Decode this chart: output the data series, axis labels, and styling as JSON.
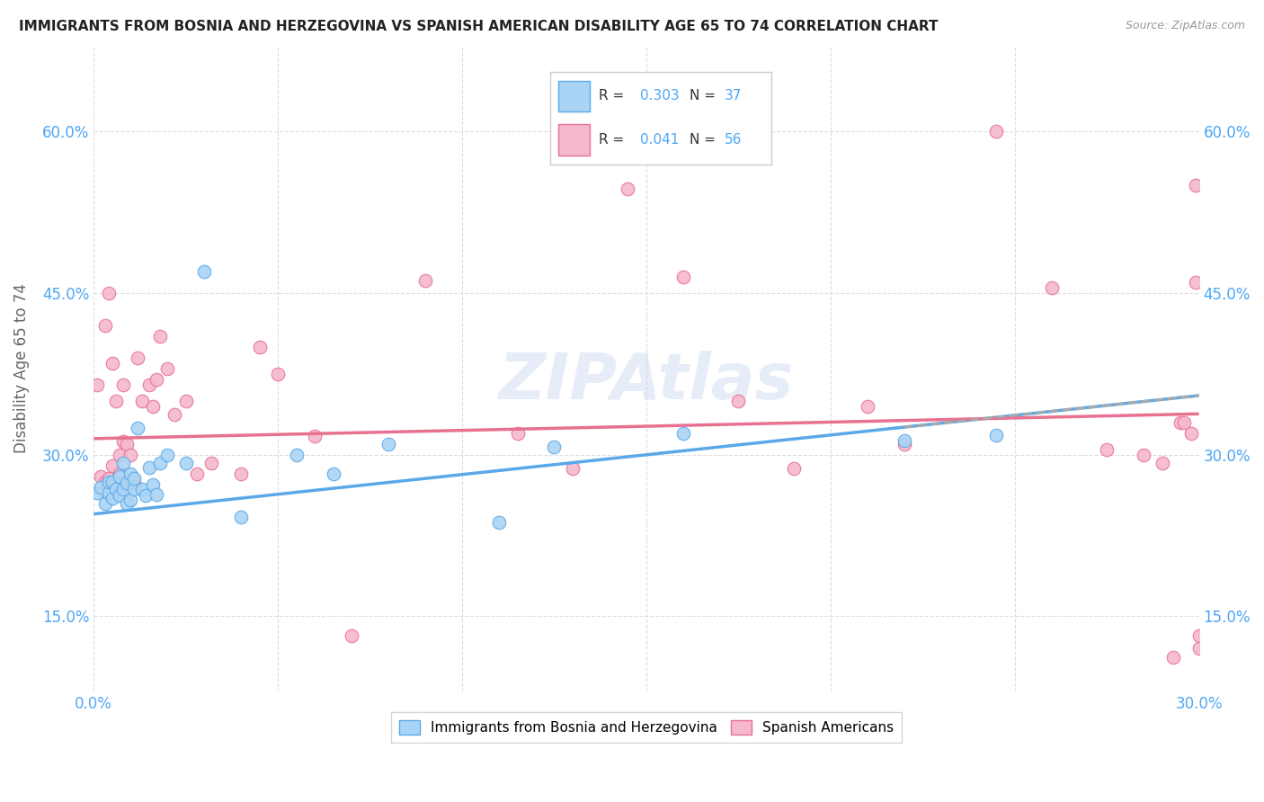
{
  "title": "IMMIGRANTS FROM BOSNIA AND HERZEGOVINA VS SPANISH AMERICAN DISABILITY AGE 65 TO 74 CORRELATION CHART",
  "source": "Source: ZipAtlas.com",
  "ylabel": "Disability Age 65 to 74",
  "xlim": [
    0.0,
    0.3
  ],
  "ylim": [
    0.08,
    0.68
  ],
  "xticks": [
    0.0,
    0.05,
    0.1,
    0.15,
    0.2,
    0.25,
    0.3
  ],
  "yticks": [
    0.15,
    0.3,
    0.45,
    0.6
  ],
  "xticklabels": [
    "0.0%",
    "",
    "",
    "",
    "",
    "",
    "30.0%"
  ],
  "yticklabels": [
    "15.0%",
    "30.0%",
    "45.0%",
    "60.0%"
  ],
  "legend_entries": [
    "Immigrants from Bosnia and Herzegovina",
    "Spanish Americans"
  ],
  "R_blue": 0.303,
  "N_blue": 37,
  "R_pink": 0.041,
  "N_pink": 56,
  "color_blue": "#aad4f5",
  "color_pink": "#f5b8cc",
  "color_blue_line": "#5aa8e8",
  "color_pink_line": "#e87090",
  "color_blue_text": "#4da6f5",
  "watermark": "ZIPAtlas",
  "blue_scatter_x": [
    0.001,
    0.002,
    0.003,
    0.004,
    0.004,
    0.005,
    0.005,
    0.006,
    0.007,
    0.007,
    0.008,
    0.008,
    0.009,
    0.009,
    0.01,
    0.01,
    0.011,
    0.011,
    0.012,
    0.013,
    0.014,
    0.015,
    0.016,
    0.017,
    0.018,
    0.02,
    0.025,
    0.03,
    0.04,
    0.055,
    0.065,
    0.08,
    0.11,
    0.125,
    0.16,
    0.22,
    0.245
  ],
  "blue_scatter_y": [
    0.265,
    0.27,
    0.255,
    0.265,
    0.275,
    0.26,
    0.275,
    0.268,
    0.262,
    0.28,
    0.268,
    0.292,
    0.255,
    0.274,
    0.258,
    0.282,
    0.268,
    0.278,
    0.325,
    0.268,
    0.262,
    0.288,
    0.272,
    0.263,
    0.292,
    0.3,
    0.292,
    0.47,
    0.242,
    0.3,
    0.282,
    0.31,
    0.237,
    0.307,
    0.32,
    0.313,
    0.318
  ],
  "pink_scatter_x": [
    0.001,
    0.002,
    0.003,
    0.003,
    0.004,
    0.004,
    0.005,
    0.005,
    0.006,
    0.006,
    0.007,
    0.007,
    0.008,
    0.008,
    0.009,
    0.009,
    0.01,
    0.011,
    0.012,
    0.013,
    0.015,
    0.016,
    0.017,
    0.018,
    0.02,
    0.022,
    0.025,
    0.028,
    0.032,
    0.04,
    0.045,
    0.05,
    0.06,
    0.07,
    0.09,
    0.115,
    0.13,
    0.145,
    0.16,
    0.175,
    0.19,
    0.21,
    0.22,
    0.245,
    0.26,
    0.275,
    0.285,
    0.29,
    0.293,
    0.295,
    0.296,
    0.298,
    0.299,
    0.299,
    0.3,
    0.3
  ],
  "pink_scatter_y": [
    0.365,
    0.28,
    0.42,
    0.275,
    0.278,
    0.45,
    0.29,
    0.385,
    0.272,
    0.35,
    0.282,
    0.3,
    0.312,
    0.365,
    0.31,
    0.272,
    0.3,
    0.275,
    0.39,
    0.35,
    0.365,
    0.345,
    0.37,
    0.41,
    0.38,
    0.337,
    0.35,
    0.282,
    0.292,
    0.282,
    0.4,
    0.375,
    0.317,
    0.132,
    0.462,
    0.32,
    0.287,
    0.547,
    0.465,
    0.35,
    0.287,
    0.345,
    0.31,
    0.6,
    0.455,
    0.305,
    0.3,
    0.292,
    0.112,
    0.33,
    0.33,
    0.32,
    0.55,
    0.46,
    0.132,
    0.12
  ]
}
